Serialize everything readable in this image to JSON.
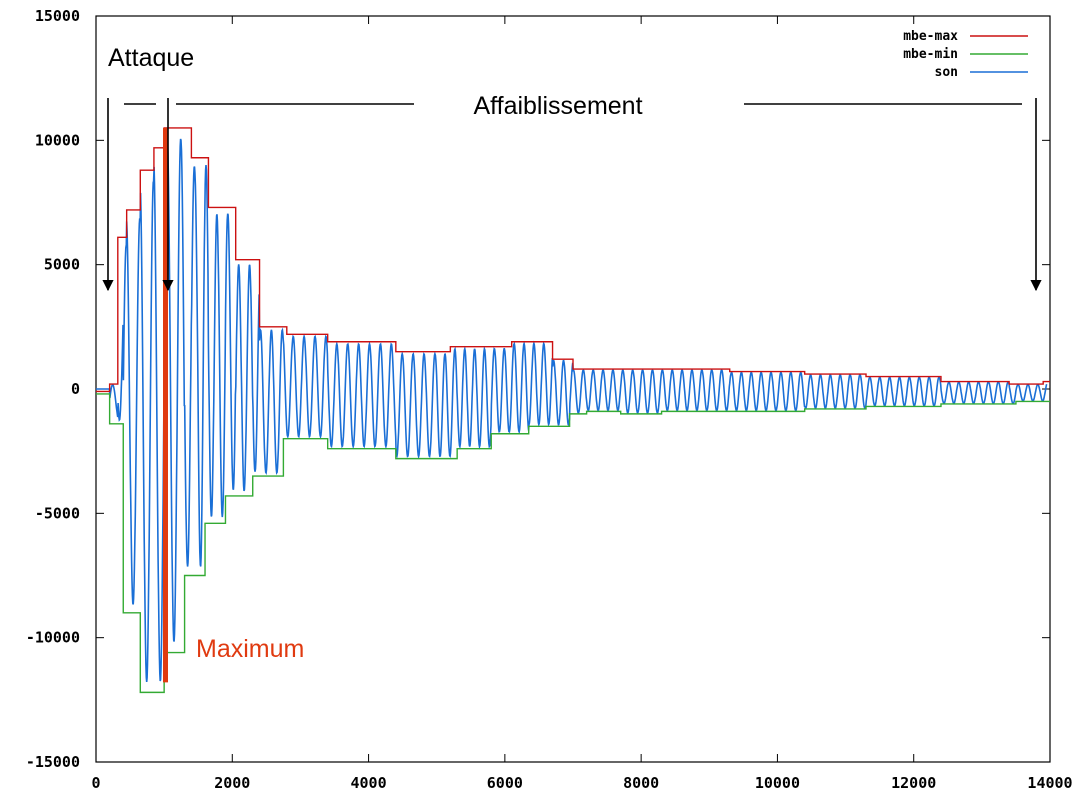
{
  "chart_data": {
    "type": "line",
    "title": "",
    "xlabel": "",
    "ylabel": "",
    "xlim": [
      0,
      14000
    ],
    "ylim": [
      -15000,
      15000
    ],
    "x_ticks": [
      "0",
      "2000",
      "4000",
      "6000",
      "8000",
      "10000",
      "12000",
      "14000"
    ],
    "y_ticks": [
      "15000",
      "10000",
      "5000",
      "0",
      "-5000",
      "-10000",
      "-15000"
    ],
    "grid": false,
    "legend": "top-right",
    "colors": {
      "mbe_max": "#cc1111",
      "mbe_min": "#33aa33",
      "son": "#1a6fd6",
      "annotation_red": "#e03a10"
    },
    "series": [
      {
        "name": "mbe-max",
        "color": "#cc1111",
        "step": true,
        "x": [
          0,
          200,
          320,
          450,
          650,
          850,
          1000,
          1400,
          1650,
          2050,
          2400,
          2800,
          3400,
          4400,
          5200,
          6100,
          6700,
          7000,
          7350,
          8300,
          9300,
          10400,
          11300,
          12400,
          13400,
          13900,
          14000
        ],
        "values": [
          -100,
          200,
          6100,
          7200,
          8800,
          9700,
          10500,
          9300,
          7300,
          5200,
          2500,
          2200,
          1900,
          1500,
          1700,
          1900,
          1200,
          800,
          800,
          800,
          700,
          600,
          500,
          300,
          200,
          300,
          300
        ]
      },
      {
        "name": "mbe-min",
        "color": "#33aa33",
        "step": true,
        "x": [
          0,
          200,
          400,
          650,
          1000,
          1300,
          1600,
          1900,
          2300,
          2750,
          3400,
          4400,
          5300,
          5800,
          6350,
          6950,
          7200,
          7700,
          8300,
          9300,
          10400,
          11300,
          12400,
          13500,
          14000
        ],
        "values": [
          -200,
          -1400,
          -9000,
          -12200,
          -10600,
          -7500,
          -5400,
          -4300,
          -3500,
          -2000,
          -2400,
          -2800,
          -2400,
          -1800,
          -1500,
          -1000,
          -900,
          -1000,
          -900,
          -900,
          -800,
          -700,
          -600,
          -500,
          -500
        ]
      },
      {
        "name": "son",
        "color": "#1a6fd6",
        "x": [
          0,
          13950
        ],
        "values": [
          0,
          0
        ],
        "envelope": "oscillates between mbe-min and mbe-max"
      }
    ]
  },
  "annotations": {
    "attack": "Attaque",
    "decay": "Affaiblissement",
    "maximum": "Maximum"
  },
  "maximum_line_x": 1020
}
